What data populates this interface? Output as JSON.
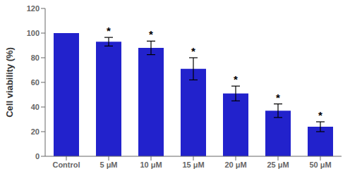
{
  "chart_data": {
    "type": "bar",
    "categories": [
      "Control",
      "5 μM",
      "10 μM",
      "15 μM",
      "20 μM",
      "25 μM",
      "50 μM"
    ],
    "values": [
      100,
      93,
      88,
      71,
      51,
      37,
      24
    ],
    "errors": [
      0,
      3.5,
      5.5,
      9.0,
      6.0,
      5.5,
      4.0
    ],
    "ylabel": "Cell viability (%)",
    "ylim": [
      0,
      120
    ],
    "yticks": [
      0,
      20,
      40,
      60,
      80,
      100,
      120
    ],
    "color": "#2222cc",
    "annotations": [
      {
        "category": "5 μM",
        "text": "*"
      },
      {
        "category": "10 μM",
        "text": "*"
      },
      {
        "category": "15 μM",
        "text": "*"
      },
      {
        "category": "20 μM",
        "text": "*"
      },
      {
        "category": "25 μM",
        "text": "*"
      },
      {
        "category": "50 μM",
        "text": "*"
      }
    ]
  }
}
